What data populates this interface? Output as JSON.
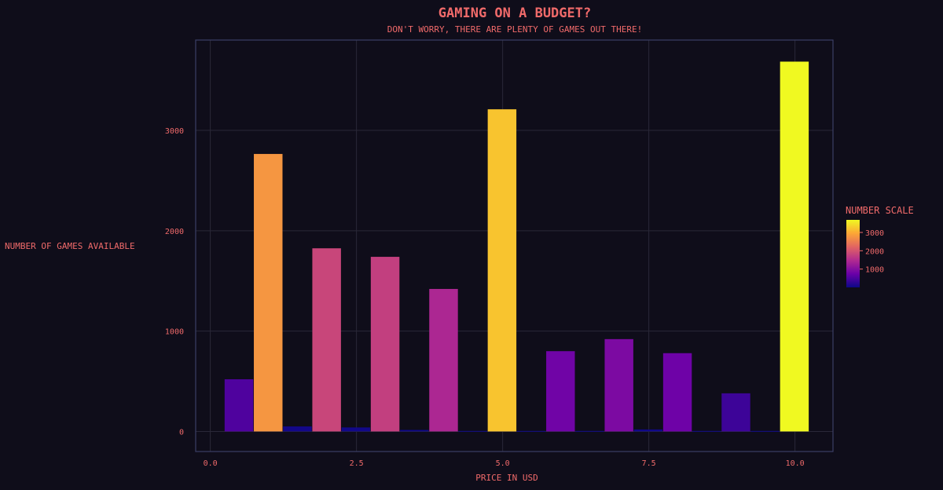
{
  "chart_data": {
    "type": "bar",
    "title": "GAMING ON A BUDGET?",
    "subtitle": "DON'T WORRY, THERE ARE PLENTY OF GAMES OUT THERE!",
    "xlabel": "PRICE IN USD",
    "ylabel": "NUMBER OF GAMES AVAILABLE",
    "xlim": [
      -0.25,
      10.65
    ],
    "ylim": [
      -200,
      3900
    ],
    "x_ticks": [
      {
        "value": 0,
        "label": "0.0"
      },
      {
        "value": 2.5,
        "label": "2.5"
      },
      {
        "value": 5,
        "label": "5.0"
      },
      {
        "value": 7.5,
        "label": "7.5"
      },
      {
        "value": 10,
        "label": "10.0"
      }
    ],
    "y_ticks": [
      {
        "value": 0,
        "label": "0"
      },
      {
        "value": 1000,
        "label": "1000"
      },
      {
        "value": 2000,
        "label": "2000"
      },
      {
        "value": 3000,
        "label": "3000"
      }
    ],
    "bar_width": 0.49,
    "grid": true,
    "x": [
      0.49,
      0.99,
      1.49,
      1.99,
      2.49,
      2.99,
      3.49,
      3.99,
      4.49,
      4.99,
      5.49,
      5.99,
      6.49,
      6.99,
      7.49,
      7.99,
      8.49,
      8.99,
      9.49,
      9.99
    ],
    "values": [
      520,
      2765,
      50,
      1825,
      40,
      1740,
      15,
      1420,
      5,
      3210,
      5,
      800,
      5,
      920,
      20,
      780,
      5,
      380,
      5,
      3685
    ],
    "color_scale": {
      "title": "NUMBER SCALE",
      "min": 0,
      "max": 3685,
      "ticks": [
        {
          "value": 1000,
          "label": "1000"
        },
        {
          "value": 2000,
          "label": "2000"
        },
        {
          "value": 3000,
          "label": "3000"
        }
      ],
      "colors": [
        "#0d0887",
        "#6a00a8",
        "#b12a90",
        "#e16462",
        "#fca636",
        "#f0f921"
      ]
    },
    "colors": {
      "background": "#0f0d1a",
      "plot_border": "#3b3f66",
      "grid": "#2a2838",
      "text": "#f06a6a"
    }
  }
}
